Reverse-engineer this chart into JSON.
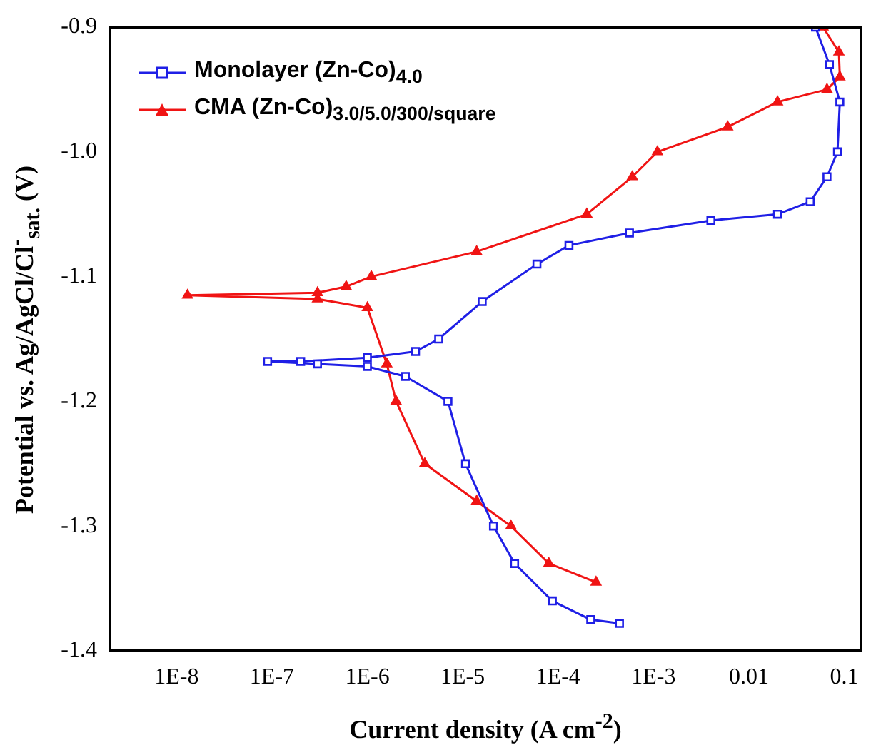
{
  "chart_data": {
    "type": "line",
    "xlabel": "Current density (A cm$^{-2}$)",
    "ylabel": "Potential vs. Ag/AgCl/Cl$^{-}$$_{sat.}$ (V)",
    "log": "x",
    "xlim": [
      2e-09,
      0.15
    ],
    "xticks": [
      {
        "value": 1e-08,
        "label": "1E-8"
      },
      {
        "value": 1e-07,
        "label": "1E-7"
      },
      {
        "value": 1e-06,
        "label": "1E-6"
      },
      {
        "value": 1e-05,
        "label": "1E-5"
      },
      {
        "value": 0.0001,
        "label": "1E-4"
      },
      {
        "value": 0.001,
        "label": "1E-3"
      },
      0.01,
      0.1
    ],
    "ylim": [
      -1.4,
      -0.9
    ],
    "yticks": [
      -1.4,
      -1.3,
      -1.2,
      -1.1,
      {
        "value": -1,
        "label": "-1.0"
      },
      -0.9
    ],
    "grid": false,
    "legend": "top left",
    "series": [
      {
        "name": "Monolayer (Zn-Co)$_{4.0}$",
        "color": "#1f1fe6",
        "marker": "square",
        "x": [
          0.00044,
          0.00022,
          8.7e-05,
          3.5e-05,
          2.1e-05,
          1.07e-05,
          7e-06,
          2.5e-06,
          1e-06,
          3e-07,
          9e-08,
          2e-07,
          1e-06,
          3.2e-06,
          5.6e-06,
          1.6e-05,
          6e-05,
          0.00013,
          0.00056,
          0.004,
          0.02,
          0.044,
          0.066,
          0.085,
          0.09,
          0.07,
          0.05
        ],
        "values": [
          -1.378,
          -1.375,
          -1.36,
          -1.33,
          -1.3,
          -1.25,
          -1.2,
          -1.18,
          -1.172,
          -1.17,
          -1.168,
          -1.168,
          -1.165,
          -1.16,
          -1.15,
          -1.12,
          -1.09,
          -1.075,
          -1.065,
          -1.055,
          -1.05,
          -1.04,
          -1.02,
          -1.0,
          -0.96,
          -0.93,
          -0.9
        ]
      },
      {
        "name": "CMA (Zn-Co)$_{3.0/5.0/300/square}$",
        "color": "#f01414",
        "marker": "triangle",
        "x": [
          0.00025,
          8e-05,
          3.2e-05,
          1.4e-05,
          4e-06,
          2e-06,
          1.6e-06,
          1e-06,
          3e-07,
          1.3e-08,
          3e-07,
          6e-07,
          1.1e-06,
          1.4e-05,
          0.0002,
          0.0006,
          0.0011,
          0.006,
          0.02,
          0.066,
          0.09,
          0.088,
          0.06
        ],
        "values": [
          -1.345,
          -1.33,
          -1.3,
          -1.28,
          -1.25,
          -1.2,
          -1.17,
          -1.125,
          -1.118,
          -1.115,
          -1.113,
          -1.108,
          -1.1,
          -1.08,
          -1.05,
          -1.02,
          -1.0,
          -0.98,
          -0.96,
          -0.95,
          -0.94,
          -0.92,
          -0.9
        ]
      }
    ]
  }
}
